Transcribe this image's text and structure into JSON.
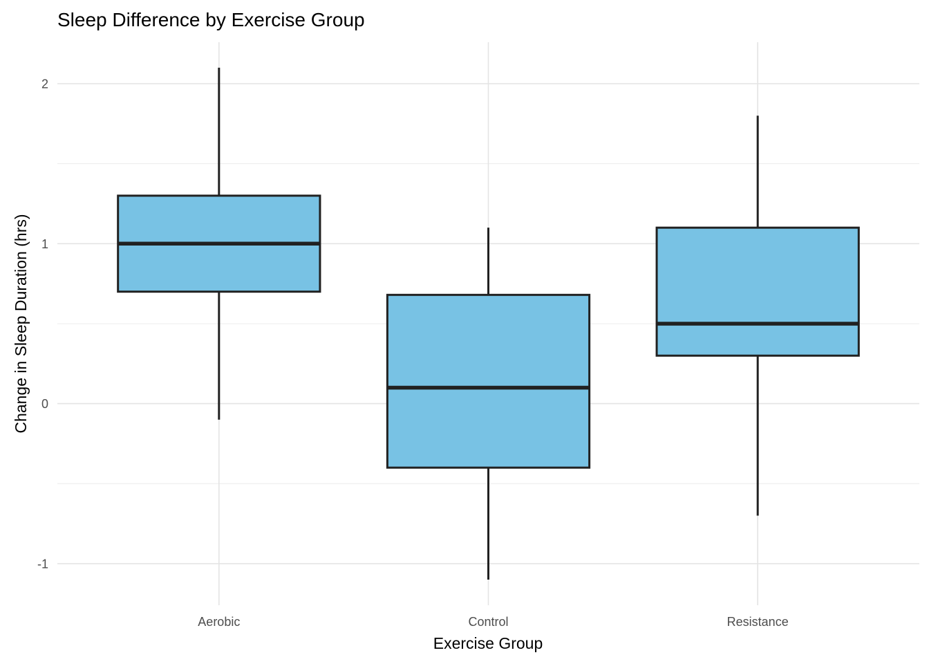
{
  "chart_data": {
    "type": "boxplot",
    "title": "Sleep Difference by Exercise Group",
    "xlabel": "Exercise Group",
    "ylabel": "Change in Sleep Duration (hrs)",
    "categories": [
      "Aerobic",
      "Control",
      "Resistance"
    ],
    "y_tick_labels": [
      "2",
      "1",
      "0",
      "-1"
    ],
    "y_tick_values": [
      2,
      1,
      0,
      -1
    ],
    "y_minor_gridline_values": [
      1.5,
      0.5,
      -0.5
    ],
    "ylim": [
      -1.26,
      2.26
    ],
    "grid": true,
    "legend": "none",
    "boxes": [
      {
        "category": "Aerobic",
        "whisker_low": -0.1,
        "q1": 0.7,
        "median": 1.0,
        "q3": 1.3,
        "whisker_high": 2.1
      },
      {
        "category": "Control",
        "whisker_low": -1.1,
        "q1": -0.4,
        "median": 0.1,
        "q3": 0.68,
        "whisker_high": 1.1
      },
      {
        "category": "Resistance",
        "whisker_low": -0.7,
        "q1": 0.3,
        "median": 0.5,
        "q3": 1.1,
        "whisker_high": 1.8
      }
    ],
    "colors": {
      "box_fill": "#78C2E4",
      "box_border": "#212121",
      "median_line": "#212121",
      "whisker": "#212121",
      "gridline_major": "#E4E4E4",
      "gridline_minor": "#ECECEC",
      "tick_label": "#4D4D4D",
      "axis_title": "#000000",
      "title": "#000000",
      "background": "#FFFFFF"
    }
  }
}
